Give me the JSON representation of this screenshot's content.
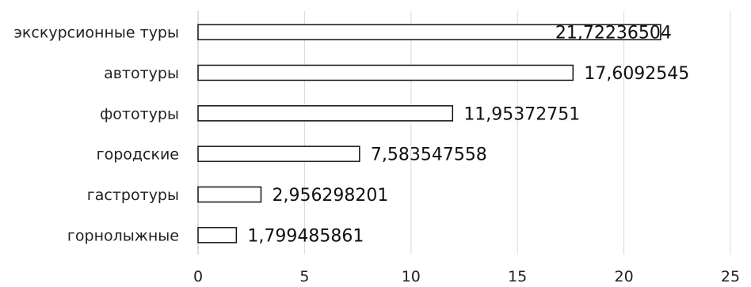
{
  "chart_data": {
    "type": "bar",
    "orientation": "horizontal",
    "categories": [
      "экскурсионные туры",
      "автотуры",
      "фототуры",
      "городские",
      "гастротуры",
      "горнолыжные"
    ],
    "values": [
      21.72236504,
      17.6092545,
      11.95372751,
      7.583547558,
      2.956298201,
      1.799485861
    ],
    "value_labels": [
      "21,72236504",
      "17,6092545",
      "11,95372751",
      "7,583547558",
      "2,956298201",
      "1,799485861"
    ],
    "title": "",
    "xlabel": "",
    "ylabel": "",
    "xlim": [
      0,
      25
    ],
    "ticks": [
      "0",
      "5",
      "10",
      "15",
      "20",
      "25"
    ],
    "tick_values": [
      0,
      5,
      10,
      15,
      20,
      25
    ],
    "grid": "vertical",
    "legend": "none",
    "colors": {
      "bar_fill": "#ffffff",
      "bar_stroke": "#111111",
      "grid": "#d9d9d9",
      "text": "#222222"
    }
  }
}
